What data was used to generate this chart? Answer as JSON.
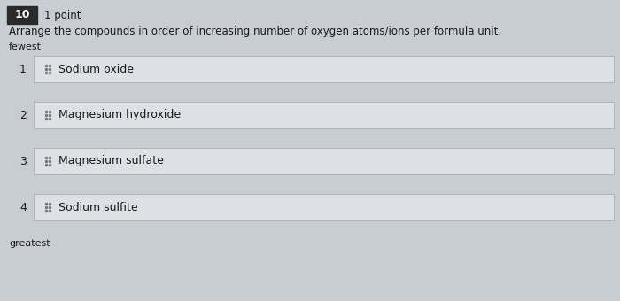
{
  "question_number": "10",
  "points": "1 point",
  "question_text": "Arrange the compounds in order of increasing number of oxygen atoms/ions per formula unit.",
  "top_label": "fewest",
  "bottom_label": "greatest",
  "items": [
    {
      "rank": "1",
      "text": "Sodium oxide"
    },
    {
      "rank": "2",
      "text": "Magnesium hydroxide"
    },
    {
      "rank": "3",
      "text": "Magnesium sulfate"
    },
    {
      "rank": "4",
      "text": "Sodium sulfite"
    }
  ],
  "bg_color": "#c8cdd4",
  "box_bg_color": "#dde0e5",
  "box_border_color": "#b0b5bb",
  "header_box_color": "#2a2a2a",
  "header_text_color": "#ffffff",
  "text_color": "#1a1a1a",
  "dot_color": "#777777",
  "figsize": [
    7.0,
    3.4
  ],
  "dpi": 100
}
